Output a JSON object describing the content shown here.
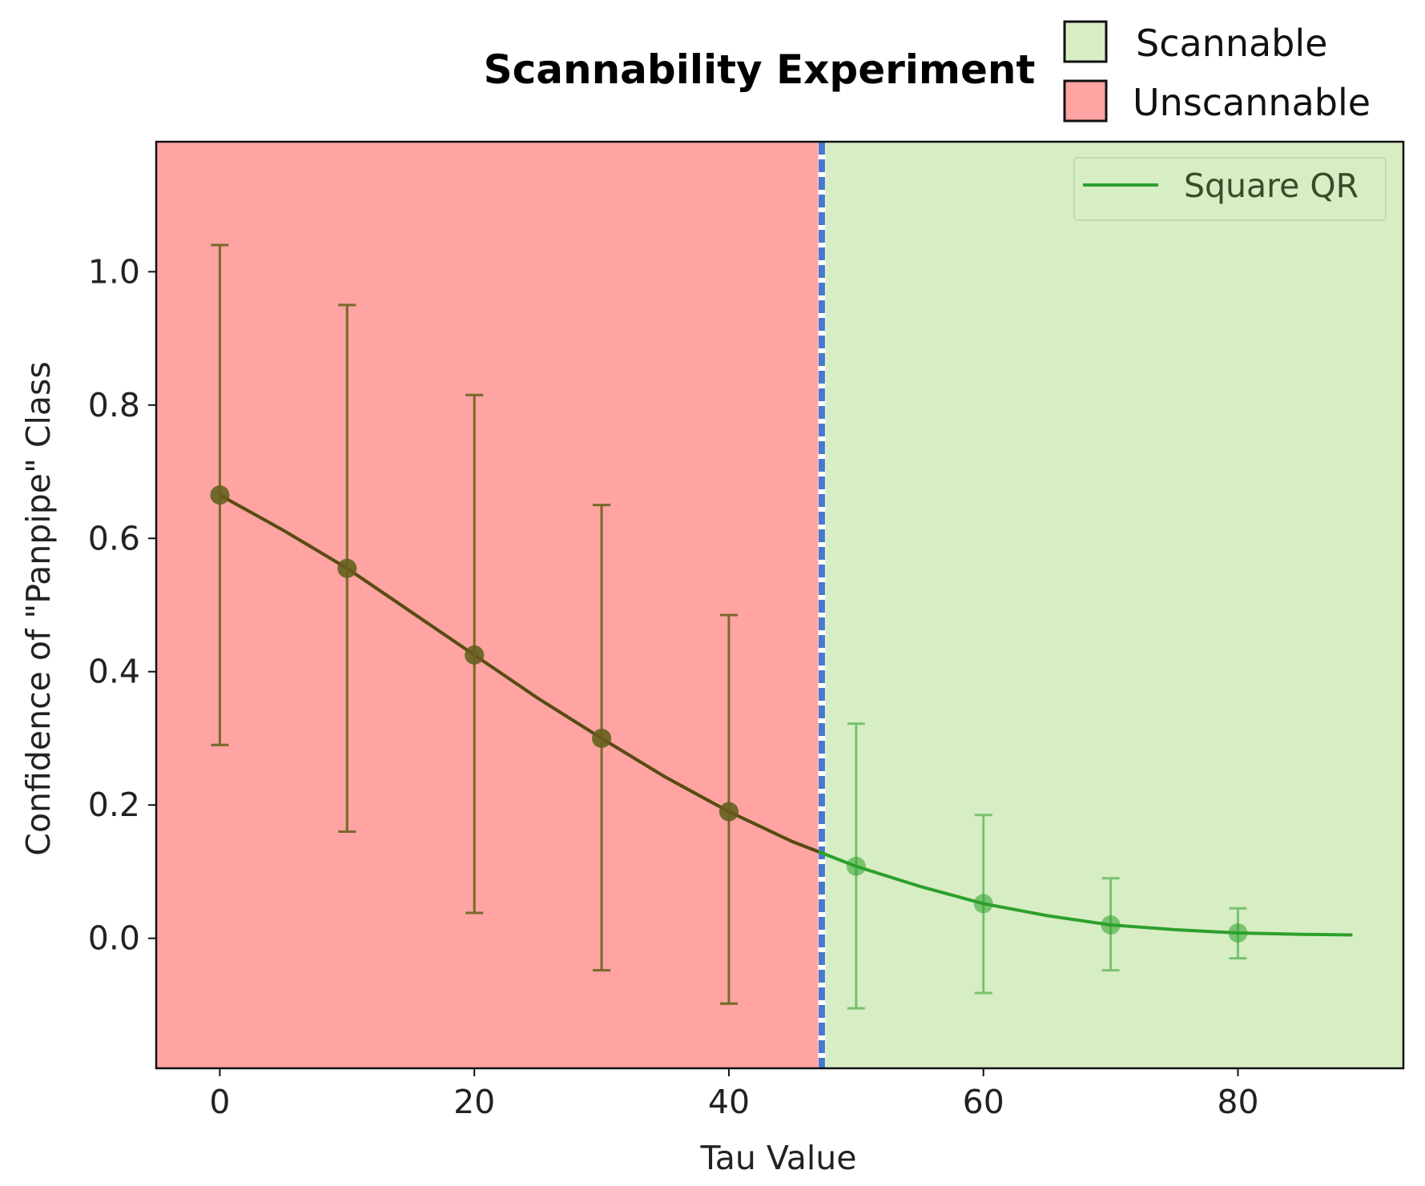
{
  "chart_data": {
    "type": "line",
    "title": "Scannability Experiment",
    "xlabel": "Tau Value",
    "ylabel": "Confidence of \"Panpipe\" Class",
    "xlim": [
      -5,
      93
    ],
    "ylim": [
      -0.195,
      1.195
    ],
    "xticks": [
      0,
      20,
      40,
      60,
      80
    ],
    "yticks": [
      0.0,
      0.2,
      0.4,
      0.6,
      0.8,
      1.0
    ],
    "xtick_labels": [
      "0",
      "20",
      "40",
      "60",
      "80"
    ],
    "ytick_labels": [
      "0.0",
      "0.2",
      "0.4",
      "0.6",
      "0.8",
      "1.0"
    ],
    "regions": [
      {
        "name": "Unscannable",
        "from": -5,
        "to": 47.3,
        "color": "#ffa3a3"
      },
      {
        "name": "Scannable",
        "from": 47.3,
        "to": 93,
        "color": "#d7edc4"
      }
    ],
    "threshold": {
      "x": 47.3,
      "color": "#4a78cc",
      "style": "dashed"
    },
    "region_legend": [
      {
        "label": "Scannable",
        "color": "#d7edc4"
      },
      {
        "label": "Unscannable",
        "color": "#ffa3a3"
      }
    ],
    "series": [
      {
        "name": "Square QR",
        "color": "#2ca02c",
        "points": [
          {
            "x": 0,
            "y": 0.665,
            "err_low": 0.29,
            "err_high": 1.04
          },
          {
            "x": 10,
            "y": 0.555,
            "err_low": 0.16,
            "err_high": 0.95
          },
          {
            "x": 20,
            "y": 0.425,
            "err_low": 0.038,
            "err_high": 0.815
          },
          {
            "x": 30,
            "y": 0.3,
            "err_low": -0.048,
            "err_high": 0.65
          },
          {
            "x": 40,
            "y": 0.19,
            "err_low": -0.098,
            "err_high": 0.485
          },
          {
            "x": 50,
            "y": 0.108,
            "err_low": -0.105,
            "err_high": 0.322
          },
          {
            "x": 60,
            "y": 0.052,
            "err_low": -0.082,
            "err_high": 0.185
          },
          {
            "x": 70,
            "y": 0.02,
            "err_low": -0.048,
            "err_high": 0.09
          },
          {
            "x": 80,
            "y": 0.008,
            "err_low": -0.03,
            "err_high": 0.045
          }
        ],
        "fit_curve": [
          [
            0,
            0.665
          ],
          [
            5,
            0.612
          ],
          [
            10,
            0.555
          ],
          [
            15,
            0.49
          ],
          [
            20,
            0.425
          ],
          [
            25,
            0.36
          ],
          [
            30,
            0.3
          ],
          [
            35,
            0.242
          ],
          [
            40,
            0.19
          ],
          [
            45,
            0.145
          ],
          [
            50,
            0.108
          ],
          [
            55,
            0.078
          ],
          [
            60,
            0.052
          ],
          [
            65,
            0.034
          ],
          [
            70,
            0.02
          ],
          [
            75,
            0.013
          ],
          [
            80,
            0.008
          ],
          [
            85,
            0.006
          ],
          [
            89,
            0.005
          ]
        ]
      }
    ]
  }
}
